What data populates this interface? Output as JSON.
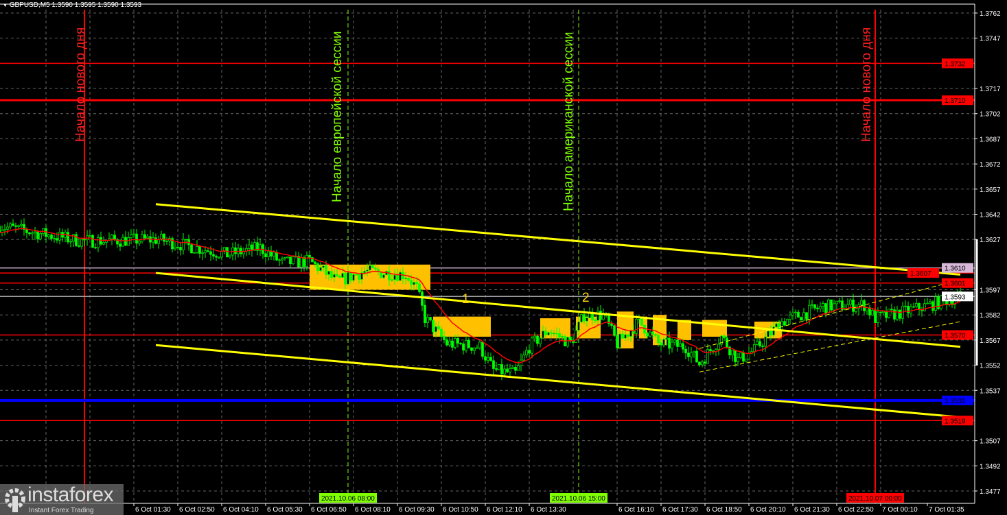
{
  "header": {
    "symbol_line": "GBPUSD,M5  1.3590 1.3595 1.3590 1.3593"
  },
  "annotations": {
    "new_day_1": "Начало нового дня",
    "europe_session": "Начало европейской сессии",
    "america_session": "Начало американской сессии",
    "new_day_2": "Начало нового дня",
    "mark_1": "1",
    "mark_2": "2"
  },
  "logo": {
    "name": "instaforex",
    "tagline": "Instant Forex Trading"
  },
  "colors": {
    "background": "#000000",
    "candles": "#00ff00",
    "support_resistance": "#ff0000",
    "channel": "#ffff00",
    "boxes": "#ffc000",
    "ma": "#ff0000",
    "level_blue": "#0000ff",
    "session_line": "#7fff00"
  },
  "chart_data": {
    "type": "candlestick",
    "symbol": "GBPUSD",
    "timeframe": "M5",
    "ohlc_last": {
      "open": 1.359,
      "high": 1.3595,
      "low": 1.359,
      "close": 1.3593
    },
    "y_ticks": [
      "1.3762",
      "1.3747",
      "1.3717",
      "1.3702",
      "1.3687",
      "1.3672",
      "1.3657",
      "1.3642",
      "1.3627",
      "1.3597",
      "1.3582",
      "1.3567",
      "1.3552",
      "1.3537",
      "1.3507",
      "1.3492",
      "1.3477"
    ],
    "ylim": [
      1.347,
      1.377
    ],
    "x_ticks": [
      {
        "t": "2021-10-06 01:30",
        "label": "6 Oct 01:30"
      },
      {
        "t": "2021-10-06 02:50",
        "label": "6 Oct 02:50"
      },
      {
        "t": "2021-10-06 04:10",
        "label": "6 Oct 04:10"
      },
      {
        "t": "2021-10-06 05:30",
        "label": "6 Oct 05:30"
      },
      {
        "t": "2021-10-06 06:50",
        "label": "6 Oct 06:50"
      },
      {
        "t": "2021-10-06 08:10",
        "label": "6 Oct 08:10"
      },
      {
        "t": "2021-10-06 09:30",
        "label": "6 Oct 09:30"
      },
      {
        "t": "2021-10-06 10:50",
        "label": "6 Oct 10:50"
      },
      {
        "t": "2021-10-06 12:10",
        "label": "6 Oct 12:10"
      },
      {
        "t": "2021-10-06 13:30",
        "label": "6 Oct 13:30"
      },
      {
        "t": "2021-10-06 16:10",
        "label": "6 Oct 16:10"
      },
      {
        "t": "2021-10-06 17:30",
        "label": "6 Oct 17:30"
      },
      {
        "t": "2021-10-06 18:50",
        "label": "6 Oct 18:50"
      },
      {
        "t": "2021-10-06 20:10",
        "label": "6 Oct 20:10"
      },
      {
        "t": "2021-10-06 21:30",
        "label": "6 Oct 21:30"
      },
      {
        "t": "2021-10-06 22:50",
        "label": "6 Oct 22:50"
      },
      {
        "t": "2021-10-07 00:10",
        "label": "7 Oct 00:10"
      },
      {
        "t": "2021-10-07 01:35",
        "label": "7 Oct 01:35"
      }
    ],
    "x_highlights": [
      {
        "t": "2021-10-06 08:00",
        "label": "2021.10.06 08:00",
        "color": "#7fff00"
      },
      {
        "t": "2021-10-06 15:00",
        "label": "2021.10.06 15:00",
        "color": "#7fff00"
      },
      {
        "t": "2021-10-07 00:00",
        "label": "2021.10.07 00:00",
        "color": "#ff0000"
      }
    ],
    "vertical_lines": [
      {
        "t": "2021-10-06 00:00",
        "color": "#ff0000",
        "style": "solid"
      },
      {
        "t": "2021-10-06 08:00",
        "color": "#7fff00",
        "style": "dashed"
      },
      {
        "t": "2021-10-06 15:00",
        "color": "#7fff00",
        "style": "dashed"
      },
      {
        "t": "2021-10-07 00:00",
        "color": "#ff0000",
        "style": "solid"
      }
    ],
    "levels": [
      {
        "price": "1.3732",
        "color": "#ff0000",
        "label_bg": "#ff0000",
        "label_fg": "#000000"
      },
      {
        "price": "1.3710",
        "color": "#ff0000",
        "label_bg": "#ff0000",
        "label_fg": "#000000"
      },
      {
        "price": "1.3610",
        "color": "#c0a0c0",
        "label_bg": "#d8b8d8",
        "label_fg": "#000000"
      },
      {
        "price": "1.3607",
        "color": "#ff0000",
        "label_bg": "#ff0000",
        "label_fg": "#000000"
      },
      {
        "price": "1.3601",
        "color": "#ff0000",
        "label_bg": "#ff0000",
        "label_fg": "#000000"
      },
      {
        "price": "1.3593",
        "color": "#a0a0a0",
        "label_bg": "#ffffff",
        "label_fg": "#000000"
      },
      {
        "price": "1.3570",
        "color": "#ff0000",
        "label_bg": "#ff0000",
        "label_fg": "#000000"
      },
      {
        "price": "1.3531",
        "color": "#0000ff",
        "label_bg": "#0000ff",
        "label_fg": "#000000"
      },
      {
        "price": "1.3519",
        "color": "#ff0000",
        "label_bg": "#ff0000",
        "label_fg": "#000000"
      }
    ],
    "price_path": [
      [
        "2021-10-05 21:25",
        1.3635
      ],
      [
        "2021-10-05 23:55",
        1.3626
      ],
      [
        "2021-10-06 02:15",
        1.3627
      ],
      [
        "2021-10-06 04:20",
        1.3618
      ],
      [
        "2021-10-06 05:20",
        1.3622
      ],
      [
        "2021-10-06 06:00",
        1.3613
      ],
      [
        "2021-10-06 06:50",
        1.3614
      ],
      [
        "2021-10-06 07:40",
        1.3602
      ],
      [
        "2021-10-06 08:30",
        1.3608
      ],
      [
        "2021-10-06 09:45",
        1.3606
      ],
      [
        "2021-10-06 10:05",
        1.3598
      ],
      [
        "2021-10-06 10:20",
        1.358
      ],
      [
        "2021-10-06 11:00",
        1.3565
      ],
      [
        "2021-10-06 12:00",
        1.3563
      ],
      [
        "2021-10-06 12:25",
        1.3549
      ],
      [
        "2021-10-06 13:05",
        1.3547
      ],
      [
        "2021-10-06 13:30",
        1.3563
      ],
      [
        "2021-10-06 14:05",
        1.3573
      ],
      [
        "2021-10-06 14:45",
        1.3565
      ],
      [
        "2021-10-06 15:10",
        1.3582
      ],
      [
        "2021-10-06 15:45",
        1.3582
      ],
      [
        "2021-10-06 16:10",
        1.3565
      ],
      [
        "2021-10-06 16:50",
        1.3578
      ],
      [
        "2021-10-06 17:25",
        1.3565
      ],
      [
        "2021-10-06 18:15",
        1.3563
      ],
      [
        "2021-10-06 18:40",
        1.3553
      ],
      [
        "2021-10-06 19:20",
        1.3569
      ],
      [
        "2021-10-06 19:50",
        1.3555
      ],
      [
        "2021-10-06 20:20",
        1.3561
      ],
      [
        "2021-10-06 21:10",
        1.3578
      ],
      [
        "2021-10-06 22:25",
        1.3587
      ],
      [
        "2021-10-06 23:40",
        1.3588
      ],
      [
        "2021-10-07 00:00",
        1.358
      ],
      [
        "2021-10-07 00:55",
        1.3584
      ],
      [
        "2021-10-07 02:35",
        1.3593
      ]
    ],
    "trend_lines": [
      {
        "from": [
          "2021-10-06 02:10",
          1.3648
        ],
        "to": [
          "2021-10-07 02:35",
          1.3606
        ],
        "style": "solid"
      },
      {
        "from": [
          "2021-10-06 02:10",
          1.3607
        ],
        "to": [
          "2021-10-07 02:35",
          1.3563
        ],
        "style": "solid"
      },
      {
        "from": [
          "2021-10-06 02:10",
          1.3564
        ],
        "to": [
          "2021-10-07 02:35",
          1.3521
        ],
        "style": "solid"
      },
      {
        "from": [
          "2021-10-06 18:40",
          1.3562
        ],
        "to": [
          "2021-10-07 02:35",
          1.3603
        ],
        "style": "dashed"
      },
      {
        "from": [
          "2021-10-06 18:40",
          1.3548
        ],
        "to": [
          "2021-10-07 02:35",
          1.3578
        ],
        "style": "dashed"
      }
    ],
    "consolidation_boxes": [
      {
        "from": "2021-10-06 06:50",
        "to": "2021-10-06 10:30",
        "high": 1.3612,
        "low": 1.3597
      },
      {
        "from": "2021-10-06 10:35",
        "to": "2021-10-06 12:20",
        "high": 1.3581,
        "low": 1.3569
      },
      {
        "from": "2021-10-06 13:50",
        "to": "2021-10-06 14:45",
        "high": 1.358,
        "low": 1.3568
      },
      {
        "from": "2021-10-06 14:55",
        "to": "2021-10-06 15:40",
        "high": 1.3581,
        "low": 1.3568
      },
      {
        "from": "2021-10-06 16:10",
        "to": "2021-10-06 16:40",
        "high": 1.3584,
        "low": 1.3562
      },
      {
        "from": "2021-10-06 16:50",
        "to": "2021-10-06 17:05",
        "high": 1.3581,
        "low": 1.3568
      },
      {
        "from": "2021-10-06 17:15",
        "to": "2021-10-06 17:40",
        "high": 1.3582,
        "low": 1.3564
      },
      {
        "from": "2021-10-06 18:00",
        "to": "2021-10-06 18:25",
        "high": 1.3579,
        "low": 1.3567
      },
      {
        "from": "2021-10-06 18:45",
        "to": "2021-10-06 19:30",
        "high": 1.3579,
        "low": 1.3569
      },
      {
        "from": "2021-10-06 20:20",
        "to": "2021-10-06 21:10",
        "high": 1.3578,
        "low": 1.3568
      }
    ]
  }
}
